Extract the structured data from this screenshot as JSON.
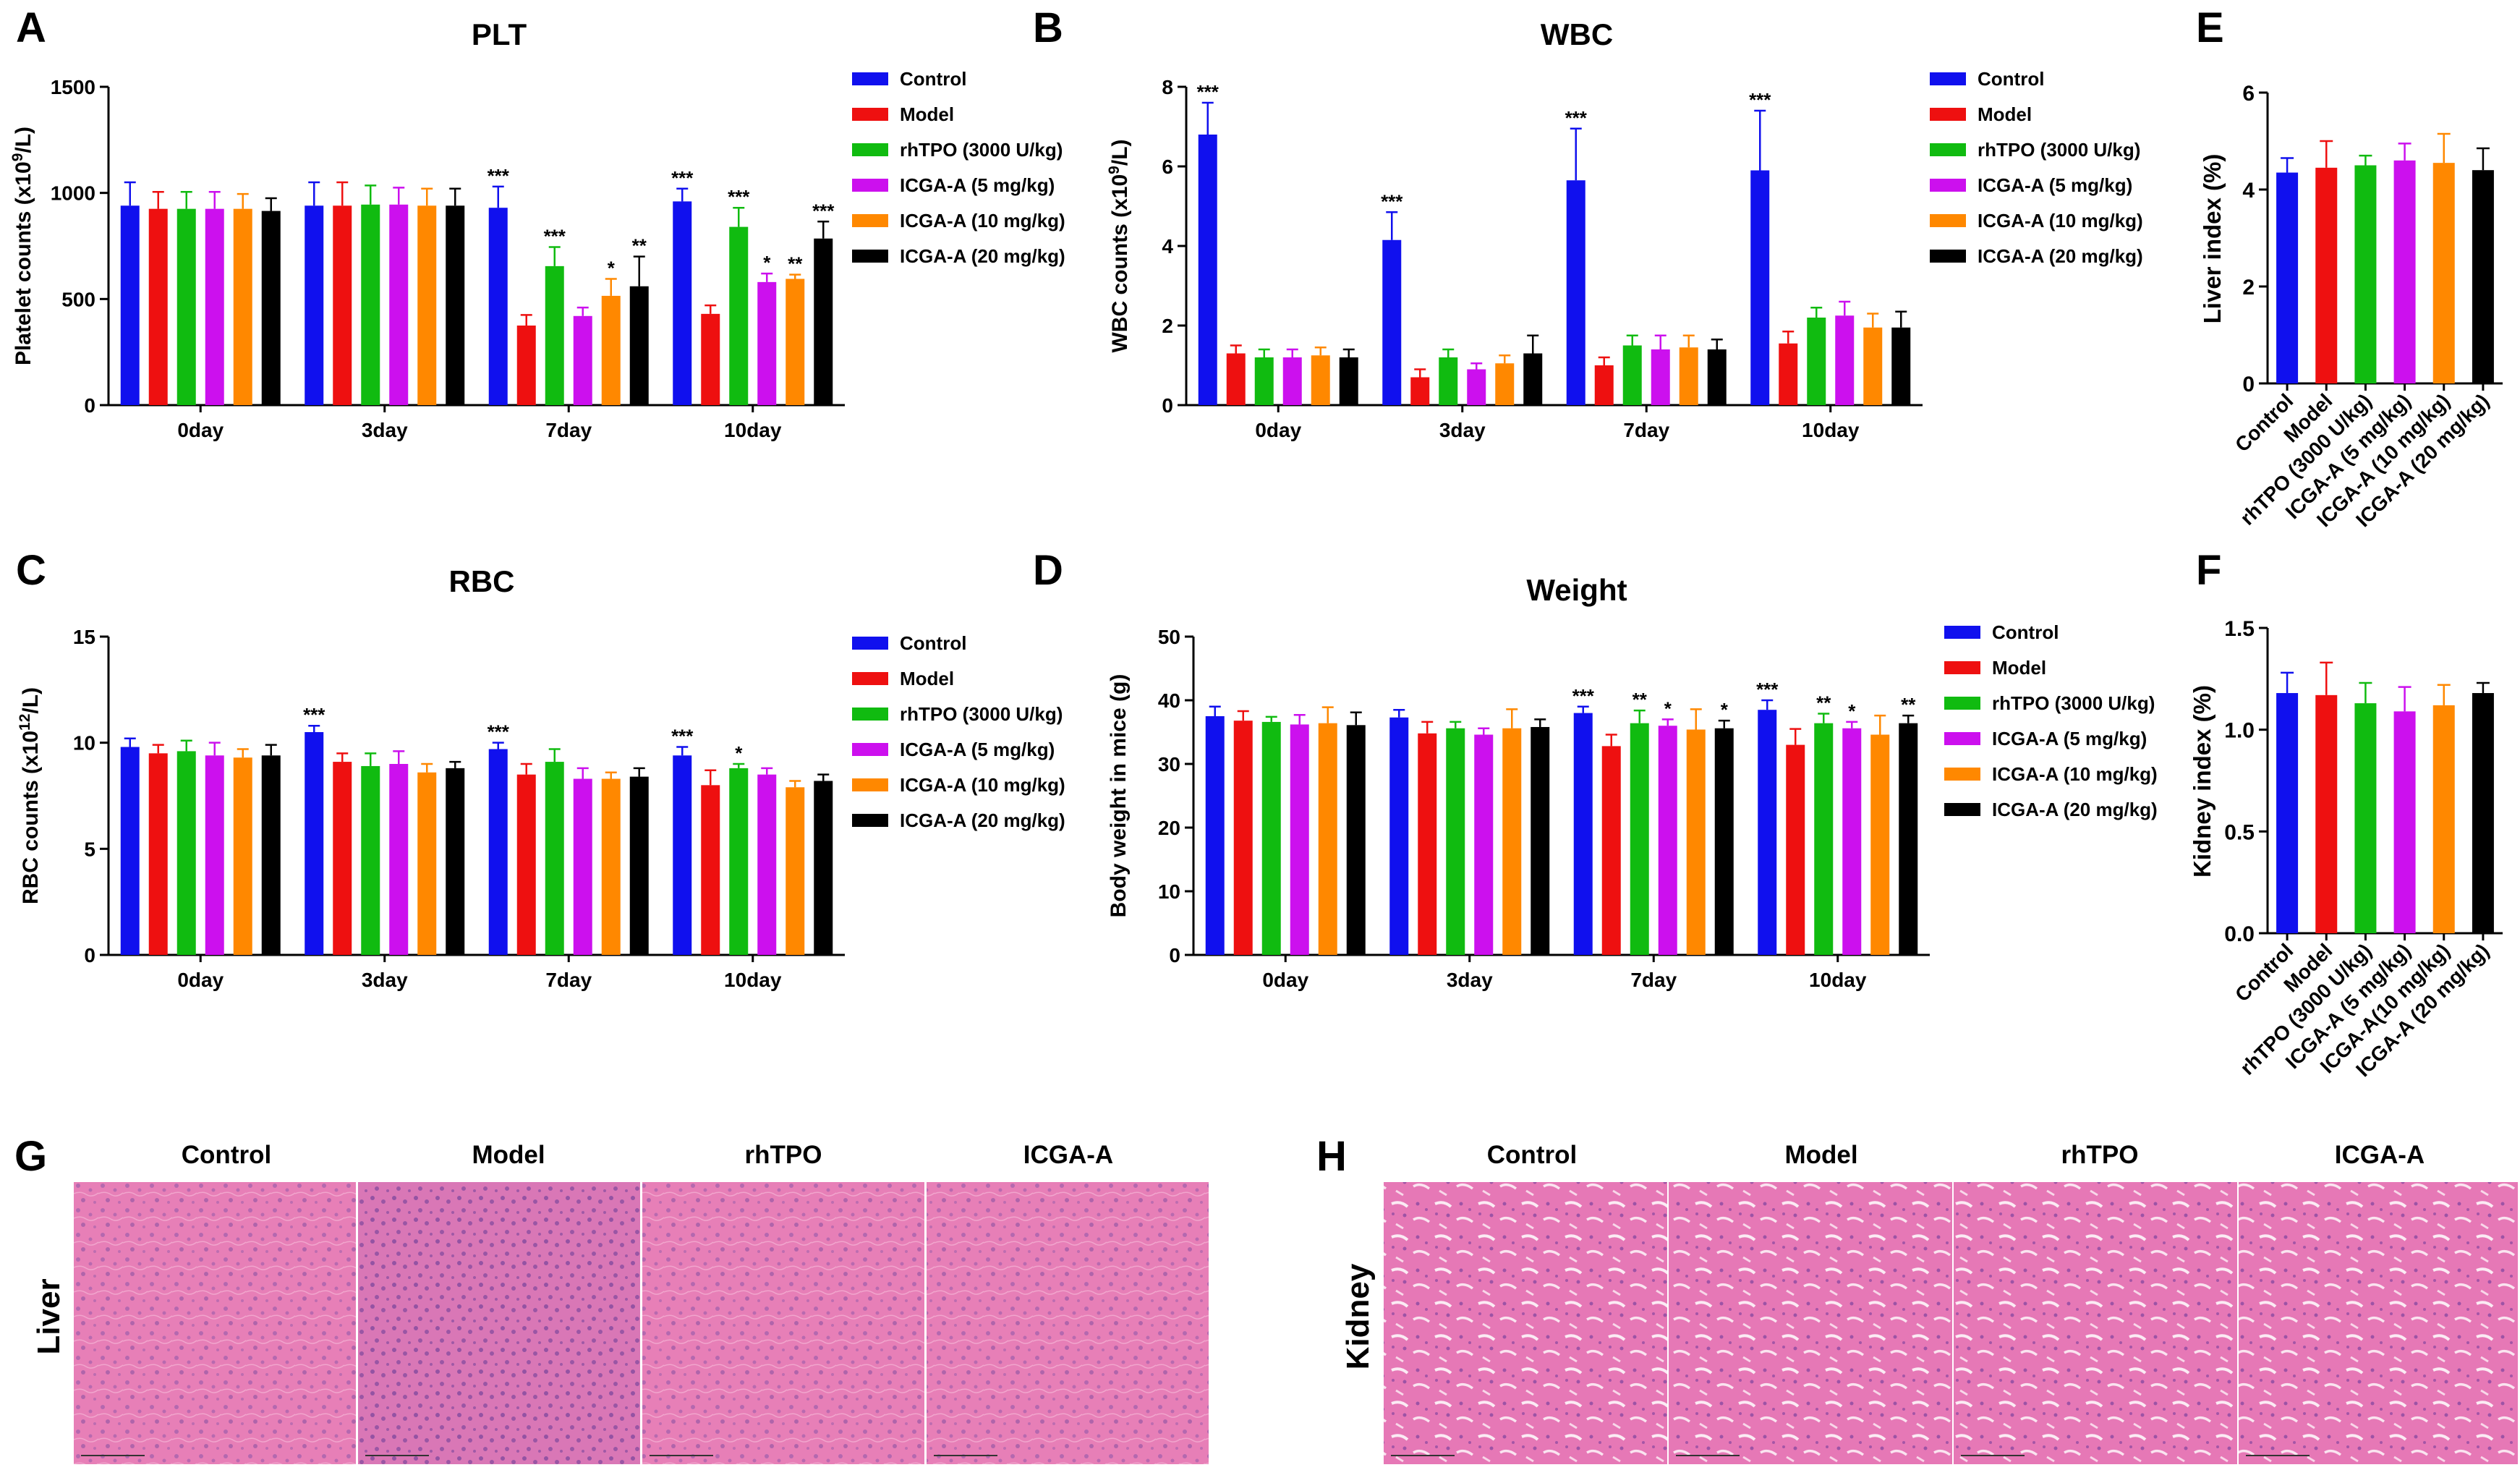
{
  "colors": {
    "Control": "#1010ee",
    "Model": "#ee1010",
    "rhTPO": "#10bb10",
    "ICGA5": "#cc10ee",
    "ICGA10": "#ff8800",
    "ICGA20": "#000000"
  },
  "legend_labels": [
    "Control",
    "Model",
    "rhTPO (3000 U/kg)",
    "ICGA-A (5 mg/kg)",
    "ICGA-A (10 mg/kg)",
    "ICGA-A (20 mg/kg)"
  ],
  "chart_data": [
    {
      "id": "A",
      "panel_letter": "A",
      "type": "bar",
      "title": "PLT",
      "ylabel": "Platelet counts (x10",
      "ylabel_sup": "9",
      "ylabel_end": "/L)",
      "categories": [
        "0day",
        "3day",
        "7day",
        "10day"
      ],
      "ylim": [
        0,
        1500
      ],
      "yticks": [
        "0",
        "500",
        "1000",
        "1500"
      ],
      "ytick_values": [
        0,
        500,
        1000,
        1500
      ],
      "series": [
        {
          "name": "Control",
          "values": [
            940,
            940,
            930,
            960
          ],
          "errors": [
            110,
            110,
            100,
            60
          ],
          "marks": [
            "",
            "",
            "***",
            "***"
          ]
        },
        {
          "name": "Model",
          "values": [
            925,
            940,
            375,
            430
          ],
          "errors": [
            80,
            110,
            50,
            40
          ],
          "marks": [
            "",
            "",
            "",
            ""
          ]
        },
        {
          "name": "rhTPO (3000 U/kg)",
          "values": [
            925,
            945,
            655,
            840
          ],
          "errors": [
            80,
            90,
            90,
            90
          ],
          "marks": [
            "",
            "",
            "***",
            "***"
          ]
        },
        {
          "name": "ICGA-A (5 mg/kg)",
          "values": [
            925,
            945,
            420,
            580
          ],
          "errors": [
            80,
            80,
            40,
            40
          ],
          "marks": [
            "",
            "",
            "",
            "*"
          ]
        },
        {
          "name": "ICGA-A (10 mg/kg)",
          "values": [
            925,
            940,
            515,
            595
          ],
          "errors": [
            70,
            80,
            80,
            20
          ],
          "marks": [
            "",
            "",
            "*",
            "**"
          ]
        },
        {
          "name": "ICGA-A (20 mg/kg)",
          "values": [
            915,
            940,
            560,
            785
          ],
          "errors": [
            60,
            80,
            140,
            80
          ],
          "marks": [
            "",
            "",
            "**",
            "***"
          ]
        }
      ]
    },
    {
      "id": "B",
      "panel_letter": "B",
      "type": "bar",
      "title": "WBC",
      "ylabel": "WBC counts (x10",
      "ylabel_sup": "9",
      "ylabel_end": "/L)",
      "categories": [
        "0day",
        "3day",
        "7day",
        "10day"
      ],
      "ylim": [
        0,
        8
      ],
      "yticks": [
        "0",
        "2",
        "4",
        "6",
        "8"
      ],
      "ytick_values": [
        0,
        2,
        4,
        6,
        8
      ],
      "series": [
        {
          "name": "Control",
          "values": [
            6.8,
            4.15,
            5.65,
            5.9
          ],
          "errors": [
            0.8,
            0.7,
            1.3,
            1.5
          ],
          "marks": [
            "***",
            "***",
            "***",
            "***"
          ]
        },
        {
          "name": "Model",
          "values": [
            1.3,
            0.7,
            1.0,
            1.55
          ],
          "errors": [
            0.2,
            0.2,
            0.2,
            0.3
          ],
          "marks": [
            "",
            "",
            "",
            ""
          ]
        },
        {
          "name": "rhTPO (3000 U/kg)",
          "values": [
            1.2,
            1.2,
            1.5,
            2.2
          ],
          "errors": [
            0.2,
            0.2,
            0.25,
            0.25
          ],
          "marks": [
            "",
            "",
            "",
            ""
          ]
        },
        {
          "name": "ICGA-A (5 mg/kg)",
          "values": [
            1.2,
            0.9,
            1.4,
            2.25
          ],
          "errors": [
            0.2,
            0.15,
            0.35,
            0.35
          ],
          "marks": [
            "",
            "",
            "",
            ""
          ]
        },
        {
          "name": "ICGA-A (10 mg/kg)",
          "values": [
            1.25,
            1.05,
            1.45,
            1.95
          ],
          "errors": [
            0.2,
            0.2,
            0.3,
            0.35
          ],
          "marks": [
            "",
            "",
            "",
            ""
          ]
        },
        {
          "name": "ICGA-A (20 mg/kg)",
          "values": [
            1.2,
            1.3,
            1.4,
            1.95
          ],
          "errors": [
            0.2,
            0.45,
            0.25,
            0.4
          ],
          "marks": [
            "",
            "",
            "",
            ""
          ]
        }
      ]
    },
    {
      "id": "C",
      "panel_letter": "C",
      "type": "bar",
      "title": "RBC",
      "ylabel": "RBC counts (x10",
      "ylabel_sup": "12",
      "ylabel_end": "/L)",
      "categories": [
        "0day",
        "3day",
        "7day",
        "10day"
      ],
      "ylim": [
        0,
        15
      ],
      "yticks": [
        "0",
        "5",
        "10",
        "15"
      ],
      "ytick_values": [
        0,
        5,
        10,
        15
      ],
      "series": [
        {
          "name": "Control",
          "values": [
            9.8,
            10.5,
            9.7,
            9.4
          ],
          "errors": [
            0.4,
            0.3,
            0.3,
            0.4
          ],
          "marks": [
            "",
            "***",
            "***",
            "***"
          ]
        },
        {
          "name": "Model",
          "values": [
            9.5,
            9.1,
            8.5,
            8.0
          ],
          "errors": [
            0.4,
            0.4,
            0.5,
            0.7
          ],
          "marks": [
            "",
            "",
            "",
            ""
          ]
        },
        {
          "name": "rhTPO (3000 U/kg)",
          "values": [
            9.6,
            8.9,
            9.1,
            8.8
          ],
          "errors": [
            0.5,
            0.6,
            0.6,
            0.2
          ],
          "marks": [
            "",
            "",
            "",
            "*"
          ]
        },
        {
          "name": "ICGA-A (5 mg/kg)",
          "values": [
            9.4,
            9.0,
            8.3,
            8.5
          ],
          "errors": [
            0.6,
            0.6,
            0.5,
            0.3
          ],
          "marks": [
            "",
            "",
            "",
            ""
          ]
        },
        {
          "name": "ICGA-A (10 mg/kg)",
          "values": [
            9.3,
            8.6,
            8.3,
            7.9
          ],
          "errors": [
            0.4,
            0.4,
            0.3,
            0.3
          ],
          "marks": [
            "",
            "",
            "",
            ""
          ]
        },
        {
          "name": "ICGA-A (20 mg/kg)",
          "values": [
            9.4,
            8.8,
            8.4,
            8.2
          ],
          "errors": [
            0.5,
            0.3,
            0.4,
            0.3
          ],
          "marks": [
            "",
            "",
            "",
            ""
          ]
        }
      ]
    },
    {
      "id": "D",
      "panel_letter": "D",
      "type": "bar",
      "title": "Weight",
      "ylabel": "Body weight in mice (g)",
      "ylabel_sup": "",
      "ylabel_end": "",
      "categories": [
        "0day",
        "3day",
        "7day",
        "10day"
      ],
      "ylim": [
        0,
        50
      ],
      "yticks": [
        "0",
        "10",
        "20",
        "30",
        "40",
        "50"
      ],
      "ytick_values": [
        0,
        10,
        20,
        30,
        40,
        50
      ],
      "series": [
        {
          "name": "Control",
          "values": [
            37.5,
            37.3,
            38.0,
            38.5
          ],
          "errors": [
            1.5,
            1.2,
            1.0,
            1.5
          ],
          "marks": [
            "",
            "",
            "***",
            "***"
          ]
        },
        {
          "name": "Model",
          "values": [
            36.8,
            34.8,
            32.8,
            33.0
          ],
          "errors": [
            1.5,
            1.8,
            1.8,
            2.5
          ],
          "marks": [
            "",
            "",
            "",
            ""
          ]
        },
        {
          "name": "rhTPO (3000 U/kg)",
          "values": [
            36.6,
            35.6,
            36.4,
            36.4
          ],
          "errors": [
            0.8,
            1.0,
            2.0,
            1.5
          ],
          "marks": [
            "",
            "",
            "**",
            "**"
          ]
        },
        {
          "name": "ICGA-A (5 mg/kg)",
          "values": [
            36.2,
            34.6,
            36.0,
            35.6
          ],
          "errors": [
            1.5,
            1.0,
            1.0,
            1.0
          ],
          "marks": [
            "",
            "",
            "*",
            "*"
          ]
        },
        {
          "name": "ICGA-A (10 mg/kg)",
          "values": [
            36.4,
            35.6,
            35.4,
            34.6
          ],
          "errors": [
            2.5,
            3.0,
            3.2,
            3.0
          ],
          "marks": [
            "",
            "",
            "",
            ""
          ]
        },
        {
          "name": "ICGA-A (20 mg/kg)",
          "values": [
            36.1,
            35.8,
            35.6,
            36.4
          ],
          "errors": [
            2.0,
            1.2,
            1.2,
            1.2
          ],
          "marks": [
            "",
            "",
            "*",
            "**"
          ]
        }
      ]
    },
    {
      "id": "E",
      "panel_letter": "E",
      "type": "bar",
      "title": "",
      "ylabel": "Liver index (%)",
      "ylim": [
        0,
        6
      ],
      "yticks": [
        "0",
        "2",
        "4",
        "6"
      ],
      "ytick_values": [
        0,
        2,
        4,
        6
      ],
      "categories": [
        "Control",
        "Model",
        "rhTPO (3000 U/kg)",
        "ICGA-A (5 mg/kg)",
        "ICGA-A (10 mg/kg)",
        "ICGA-A (20 mg/kg)"
      ],
      "values": [
        4.35,
        4.45,
        4.5,
        4.6,
        4.55,
        4.4
      ],
      "errors": [
        0.3,
        0.55,
        0.2,
        0.35,
        0.6,
        0.45
      ]
    },
    {
      "id": "F",
      "panel_letter": "F",
      "type": "bar",
      "title": "",
      "ylabel": "Kidney index (%)",
      "ylim": [
        0,
        1.5
      ],
      "yticks": [
        "0.0",
        "0.5",
        "1.0",
        "1.5"
      ],
      "ytick_values": [
        0,
        0.5,
        1.0,
        1.5
      ],
      "categories": [
        "Control",
        "Model",
        "rhTPO (3000 U/kg)",
        "ICGA-A (5 mg/kg)",
        "ICGA-A(10 mg/kg)",
        "ICGA-A (20 mg/kg)"
      ],
      "values": [
        1.18,
        1.17,
        1.13,
        1.09,
        1.12,
        1.18
      ],
      "errors": [
        0.1,
        0.16,
        0.1,
        0.12,
        0.1,
        0.05
      ]
    }
  ],
  "histology": {
    "G": {
      "letter": "G",
      "row_label": "Liver",
      "columns": [
        "Control",
        "Model",
        "rhTPO",
        "ICGA-A"
      ]
    },
    "H": {
      "letter": "H",
      "row_label": "Kidney",
      "columns": [
        "Control",
        "Model",
        "rhTPO",
        "ICGA-A"
      ]
    }
  }
}
